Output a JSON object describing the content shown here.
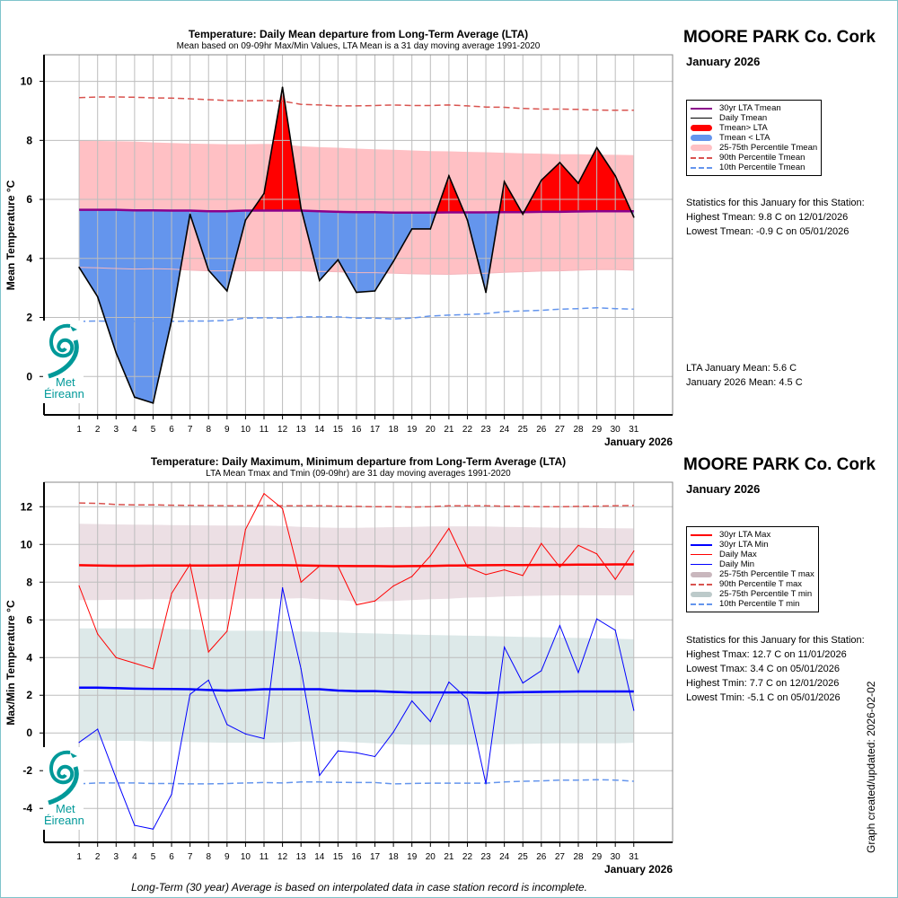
{
  "station": "MOORE PARK Co. Cork",
  "month_label": "January 2026",
  "footer_note": "Long-Term (30 year) Average is based on interpolated data in case station record is incomplete.",
  "updated_label": "Graph created/updated:  2026-02-02",
  "colors": {
    "lta_mean": "#8b008b",
    "above": "#ff0000",
    "below": "#6495ed",
    "pct_band_mean": "#ffc0c4",
    "p90": "#d9534f",
    "p10": "#6495ed",
    "lta_max": "#ff0000",
    "lta_min": "#0000ff",
    "band_max": "#ecdfe4",
    "band_min": "#dde9e9",
    "logo": "#009999"
  },
  "logo": {
    "line1": "Met",
    "line2": "Éireann"
  },
  "top": {
    "legend": [
      {
        "label": "30yr LTA Tmean",
        "style": "line-purple"
      },
      {
        "label": "Daily Tmean",
        "style": "line-black"
      },
      {
        "label": "Tmean> LTA",
        "style": "thick-red"
      },
      {
        "label": "Tmean < LTA",
        "style": "thick-blue"
      },
      {
        "label": "25-75th Percentile Tmean",
        "style": "thick-pink"
      },
      {
        "label": "90th Percentile Tmean",
        "style": "dash-red"
      },
      {
        "label": "10th Percentile Tmean",
        "style": "dash-blue"
      }
    ],
    "stats_title": "Statistics for this January for this Station:",
    "stats": [
      "Highest Tmean: 9.8 C on 12/01/2026",
      "Lowest Tmean: -0.9 C on 05/01/2026"
    ],
    "means": [
      "LTA January Mean: 5.6 C",
      "January 2026 Mean: 4.5 C"
    ]
  },
  "bottom": {
    "legend": [
      {
        "label": "30yr LTA Max",
        "style": "line-red-thick"
      },
      {
        "label": "30yr LTA Min",
        "style": "line-blue-thick"
      },
      {
        "label": "Daily Max",
        "style": "line-red"
      },
      {
        "label": "Daily Min",
        "style": "line-blue"
      },
      {
        "label": "25-75th Percentile T max",
        "style": "thick-mauve"
      },
      {
        "label": "90th Percentile T max",
        "style": "dash-red"
      },
      {
        "label": "25-75th Percentile T min",
        "style": "thick-grey"
      },
      {
        "label": "10th Percentile T min",
        "style": "dash-blue"
      }
    ],
    "stats_title": "Statistics for this January for this Station:",
    "stats": [
      "Highest Tmax: 12.7 C on 11/01/2026",
      "Lowest Tmax: 3.4 C on 05/01/2026",
      "Highest Tmin: 7.7 C on 12/01/2026",
      "Lowest Tmin: -5.1 C on 05/01/2026"
    ]
  },
  "chart_data": [
    {
      "type": "area",
      "title": "Temperature: Daily Mean departure from Long-Term Average (LTA)",
      "subtitle": "Mean based on 09-09hr Max/Min Values, LTA Mean is a 31 day moving average 1991-2020",
      "xlabel": "January 2026",
      "ylabel": "Mean Temperature °C",
      "xlim": [
        -0.9,
        33.1
      ],
      "ylim": [
        -1.3,
        10.9
      ],
      "yticks": [
        0,
        2,
        4,
        6,
        8,
        10
      ],
      "x": [
        1,
        2,
        3,
        4,
        5,
        6,
        7,
        8,
        9,
        10,
        11,
        12,
        13,
        14,
        15,
        16,
        17,
        18,
        19,
        20,
        21,
        22,
        23,
        24,
        25,
        26,
        27,
        28,
        29,
        30,
        31
      ],
      "grid": true,
      "legend_position": "right",
      "series": [
        {
          "name": "Daily Tmean",
          "values": [
            3.7,
            2.7,
            0.8,
            -0.7,
            -0.9,
            1.9,
            5.5,
            3.6,
            2.9,
            5.3,
            6.2,
            9.8,
            5.7,
            3.25,
            3.95,
            2.85,
            2.9,
            3.9,
            5.0,
            5.0,
            6.8,
            5.3,
            2.85,
            6.6,
            5.5,
            6.65,
            7.25,
            6.55,
            7.75,
            6.8,
            5.4
          ]
        },
        {
          "name": "30yr LTA Tmean",
          "values": [
            5.65,
            5.65,
            5.65,
            5.63,
            5.63,
            5.62,
            5.62,
            5.6,
            5.6,
            5.62,
            5.62,
            5.62,
            5.62,
            5.6,
            5.58,
            5.57,
            5.57,
            5.55,
            5.55,
            5.55,
            5.56,
            5.56,
            5.56,
            5.57,
            5.57,
            5.58,
            5.58,
            5.59,
            5.6,
            5.6,
            5.6
          ]
        },
        {
          "name": "25th Percentile Tmean",
          "values": [
            3.7,
            3.68,
            3.66,
            3.64,
            3.65,
            3.64,
            3.6,
            3.58,
            3.58,
            3.58,
            3.58,
            3.58,
            3.58,
            3.56,
            3.55,
            3.52,
            3.52,
            3.5,
            3.48,
            3.47,
            3.46,
            3.48,
            3.5,
            3.53,
            3.55,
            3.57,
            3.58,
            3.6,
            3.62,
            3.62,
            3.6
          ]
        },
        {
          "name": "75th Percentile Tmean",
          "values": [
            8.0,
            7.98,
            7.97,
            7.96,
            7.93,
            7.91,
            7.89,
            7.88,
            7.87,
            7.87,
            7.88,
            7.87,
            7.8,
            7.77,
            7.75,
            7.72,
            7.7,
            7.68,
            7.66,
            7.64,
            7.63,
            7.61,
            7.6,
            7.58,
            7.56,
            7.55,
            7.53,
            7.53,
            7.52,
            7.51,
            7.5
          ]
        },
        {
          "name": "90th Percentile Tmean",
          "values": [
            9.45,
            9.47,
            9.47,
            9.46,
            9.44,
            9.43,
            9.41,
            9.38,
            9.35,
            9.34,
            9.35,
            9.33,
            9.22,
            9.2,
            9.17,
            9.17,
            9.18,
            9.2,
            9.18,
            9.18,
            9.2,
            9.17,
            9.13,
            9.12,
            9.08,
            9.06,
            9.06,
            9.05,
            9.03,
            9.02,
            9.02
          ]
        },
        {
          "name": "10th Percentile Tmean",
          "values": [
            1.87,
            1.88,
            1.87,
            1.87,
            1.88,
            1.87,
            1.88,
            1.88,
            1.9,
            1.98,
            1.99,
            1.98,
            2.02,
            2.02,
            2.02,
            1.98,
            1.98,
            1.95,
            1.98,
            2.05,
            2.08,
            2.1,
            2.13,
            2.2,
            2.22,
            2.24,
            2.28,
            2.3,
            2.33,
            2.3,
            2.28
          ]
        }
      ]
    },
    {
      "type": "line",
      "title": "Temperature: Daily Maximum, Minimum departure from Long-Term Average (LTA)",
      "subtitle": "LTA Mean Tmax and Tmin (09-09hr) are 31 day moving averages 1991-2020",
      "xlabel": "January 2026",
      "ylabel": "Max/Min Temperature °C",
      "xlim": [
        -0.9,
        33.1
      ],
      "ylim": [
        -5.8,
        13.3
      ],
      "yticks": [
        -4,
        -2,
        0,
        2,
        4,
        6,
        8,
        10,
        12
      ],
      "x": [
        1,
        2,
        3,
        4,
        5,
        6,
        7,
        8,
        9,
        10,
        11,
        12,
        13,
        14,
        15,
        16,
        17,
        18,
        19,
        20,
        21,
        22,
        23,
        24,
        25,
        26,
        27,
        28,
        29,
        30,
        31
      ],
      "grid": true,
      "legend_position": "right",
      "series": [
        {
          "name": "Daily Max",
          "values": [
            7.8,
            5.25,
            4.0,
            3.7,
            3.4,
            7.4,
            8.95,
            4.3,
            5.4,
            10.8,
            12.7,
            11.9,
            8.0,
            8.85,
            8.85,
            6.8,
            7.0,
            7.8,
            8.3,
            9.4,
            10.85,
            8.8,
            8.4,
            8.65,
            8.35,
            10.05,
            8.8,
            9.95,
            9.5,
            8.15,
            9.65
          ]
        },
        {
          "name": "Daily Min",
          "values": [
            -0.5,
            0.2,
            -2.4,
            -4.9,
            -5.1,
            -3.25,
            2.05,
            2.8,
            0.45,
            -0.05,
            -0.3,
            7.7,
            3.4,
            -2.25,
            -0.95,
            -1.05,
            -1.25,
            0.05,
            1.7,
            0.6,
            2.7,
            1.8,
            -2.7,
            4.55,
            2.65,
            3.3,
            5.7,
            3.2,
            6.05,
            5.45,
            1.2
          ]
        },
        {
          "name": "30yr LTA Max",
          "values": [
            8.9,
            8.88,
            8.87,
            8.87,
            8.88,
            8.88,
            8.88,
            8.88,
            8.89,
            8.9,
            8.9,
            8.9,
            8.89,
            8.87,
            8.86,
            8.85,
            8.85,
            8.84,
            8.85,
            8.86,
            8.88,
            8.89,
            8.9,
            8.91,
            8.91,
            8.92,
            8.92,
            8.93,
            8.93,
            8.94,
            8.94
          ]
        },
        {
          "name": "30yr LTA Min",
          "values": [
            2.4,
            2.4,
            2.38,
            2.35,
            2.34,
            2.33,
            2.32,
            2.28,
            2.25,
            2.28,
            2.32,
            2.32,
            2.32,
            2.32,
            2.25,
            2.22,
            2.22,
            2.18,
            2.15,
            2.15,
            2.15,
            2.15,
            2.13,
            2.15,
            2.17,
            2.18,
            2.19,
            2.2,
            2.2,
            2.2,
            2.2
          ]
        },
        {
          "name": "25th Percentile T max",
          "values": [
            7.05,
            7.05,
            7.07,
            7.08,
            7.1,
            7.1,
            7.1,
            7.1,
            7.1,
            7.12,
            7.12,
            7.12,
            7.15,
            7.1,
            7.05,
            6.98,
            6.98,
            7.0,
            7.05,
            7.1,
            7.12,
            7.18,
            7.2,
            7.24,
            7.26,
            7.28,
            7.3,
            7.3,
            7.3,
            7.3,
            7.3
          ]
        },
        {
          "name": "75th Percentile T max",
          "values": [
            11.1,
            11.08,
            11.06,
            11.05,
            11.04,
            11.03,
            11.02,
            11.01,
            11.0,
            11.0,
            11.0,
            10.98,
            10.93,
            10.9,
            10.88,
            10.88,
            10.9,
            10.92,
            10.93,
            10.95,
            10.96,
            10.96,
            10.95,
            10.93,
            10.92,
            10.9,
            10.88,
            10.88,
            10.87,
            10.86,
            10.85
          ]
        },
        {
          "name": "25th Percentile T min",
          "values": [
            -0.4,
            -0.4,
            -0.42,
            -0.42,
            -0.45,
            -0.45,
            -0.48,
            -0.5,
            -0.52,
            -0.52,
            -0.52,
            -0.5,
            -0.45,
            -0.45,
            -0.45,
            -0.5,
            -0.55,
            -0.6,
            -0.62,
            -0.62,
            -0.62,
            -0.62,
            -0.62,
            -0.6,
            -0.58,
            -0.56,
            -0.55,
            -0.55,
            -0.55,
            -0.55,
            -0.52
          ]
        },
        {
          "name": "75th Percentile T min",
          "values": [
            5.55,
            5.55,
            5.55,
            5.55,
            5.55,
            5.52,
            5.5,
            5.45,
            5.42,
            5.42,
            5.42,
            5.4,
            5.38,
            5.36,
            5.33,
            5.3,
            5.28,
            5.25,
            5.22,
            5.2,
            5.18,
            5.16,
            5.14,
            5.12,
            5.1,
            5.08,
            5.06,
            5.04,
            5.02,
            5.0,
            4.97
          ]
        },
        {
          "name": "90th Percentile T max",
          "values": [
            12.2,
            12.18,
            12.12,
            12.1,
            12.1,
            12.08,
            12.07,
            12.06,
            12.05,
            12.05,
            12.06,
            12.05,
            12.05,
            12.05,
            12.03,
            12.02,
            12.0,
            12.0,
            11.98,
            12.0,
            12.05,
            12.05,
            12.05,
            12.03,
            12.02,
            12.0,
            12.0,
            12.02,
            12.03,
            12.05,
            12.06
          ]
        },
        {
          "name": "10th Percentile T min",
          "values": [
            -2.7,
            -2.65,
            -2.65,
            -2.65,
            -2.68,
            -2.68,
            -2.7,
            -2.7,
            -2.68,
            -2.65,
            -2.63,
            -2.65,
            -2.6,
            -2.6,
            -2.62,
            -2.63,
            -2.63,
            -2.7,
            -2.68,
            -2.66,
            -2.66,
            -2.66,
            -2.66,
            -2.6,
            -2.56,
            -2.54,
            -2.5,
            -2.5,
            -2.48,
            -2.5,
            -2.56
          ]
        }
      ]
    }
  ]
}
